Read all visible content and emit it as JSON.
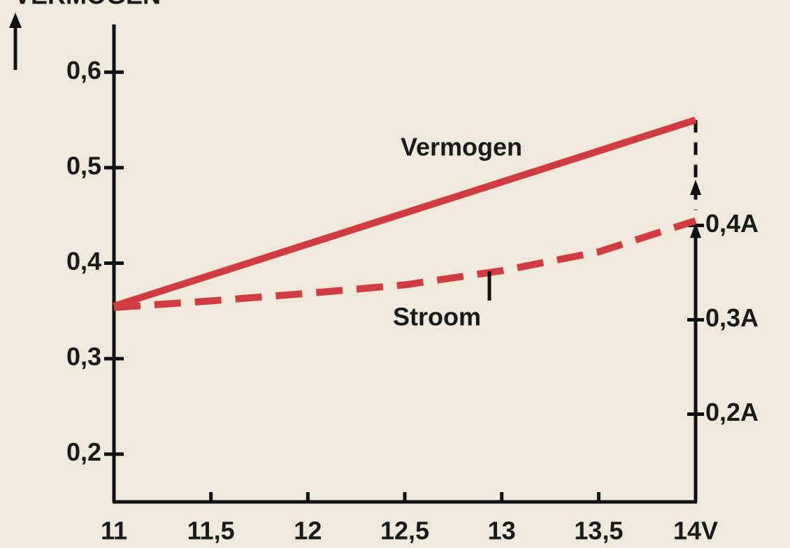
{
  "chart_data": {
    "type": "line",
    "ylabel": "VERMOGEN",
    "xlim": [
      11,
      14
    ],
    "xticks": [
      11,
      {
        "value": 11.5,
        "label": "11,5"
      },
      12,
      {
        "value": 12.5,
        "label": "12,5"
      },
      13,
      {
        "value": 13.5,
        "label": "13,5"
      },
      {
        "value": 14,
        "label": "14V"
      }
    ],
    "ylim": [
      0.15,
      0.65
    ],
    "yticks": [
      {
        "value": 0.2,
        "label": "0,2"
      },
      {
        "value": 0.3,
        "label": "0,3"
      },
      {
        "value": 0.4,
        "label": "0,4"
      },
      {
        "value": 0.5,
        "label": "0,5"
      },
      {
        "value": 0.6,
        "label": "0,6"
      }
    ],
    "y2lim": [
      0.107,
      0.613
    ],
    "y2ticks": [
      {
        "value": 0.2,
        "label": "0,2A"
      },
      {
        "value": 0.3,
        "label": "0,3A"
      },
      {
        "value": 0.4,
        "label": "0,4A"
      }
    ],
    "series": [
      {
        "name": "Vermogen",
        "color": "#d13c42",
        "x": [
          11,
          14
        ],
        "values": [
          0.355,
          0.55
        ]
      },
      {
        "name": "Stroom",
        "color": "#d13c42",
        "axis": "y2",
        "dashed": true,
        "x": [
          11,
          11.5,
          12,
          12.5,
          13,
          13.5,
          14
        ],
        "values": [
          0.313,
          0.32,
          0.328,
          0.337,
          0.352,
          0.372,
          0.405
        ]
      }
    ]
  }
}
